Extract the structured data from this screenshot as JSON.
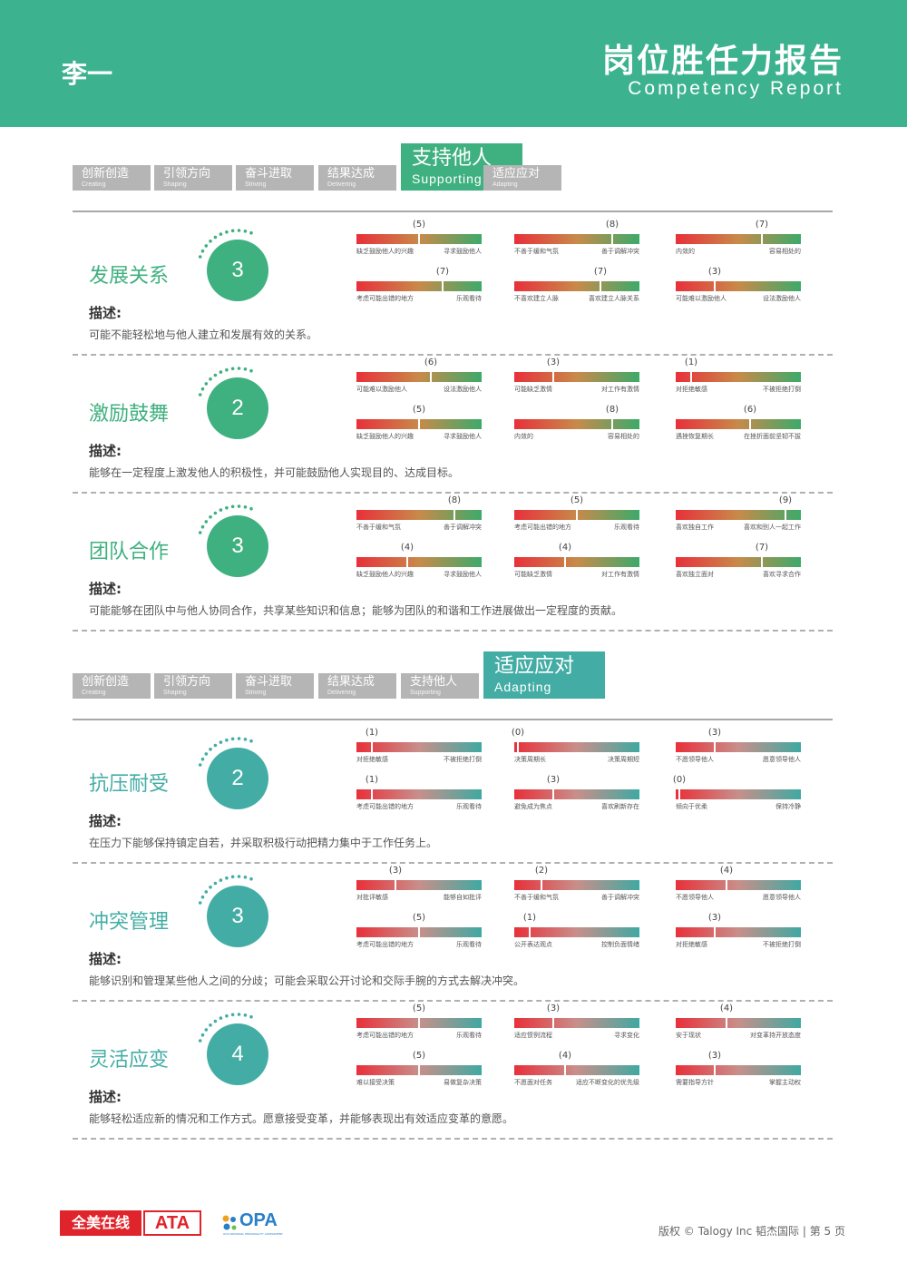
{
  "header": {
    "name": "李一",
    "title_cn": "岗位胜任力报告",
    "title_en": "Competency Report"
  },
  "colors": {
    "header_bg": "#3db28f",
    "supporting": "#3fb07f",
    "adapting": "#43ada5",
    "tab_gray": "#b5b5b5"
  },
  "sections": [
    {
      "accent": "#3fb07f",
      "gradient": "green",
      "tabs": [
        {
          "cn": "创新创造",
          "en": "Creating",
          "active": false
        },
        {
          "cn": "引领方向",
          "en": "Shaping",
          "active": false
        },
        {
          "cn": "奋斗进取",
          "en": "Striving",
          "active": false
        },
        {
          "cn": "结果达成",
          "en": "Delivering",
          "active": false
        },
        {
          "cn": "支持他人",
          "en": "Supporting",
          "active": true
        },
        {
          "cn": "适应应对",
          "en": "Adapting",
          "active": false
        }
      ],
      "competencies": [
        {
          "title": "发展关系",
          "score": "3",
          "desc_label": "描述:",
          "desc": "可能不能轻松地与他人建立和发展有效的关系。",
          "bars": [
            {
              "value": 5,
              "left": "缺乏鼓励他人的兴趣",
              "right": "寻求鼓励他人"
            },
            {
              "value": 8,
              "left": "不善于缓和气氛",
              "right": "善于调解冲突"
            },
            {
              "value": 7,
              "left": "内敛的",
              "right": "容易相处的"
            },
            {
              "value": 7,
              "left": "考虑可能出错的地方",
              "right": "乐观看待"
            },
            {
              "value": 7,
              "left": "不喜欢建立人脉",
              "right": "喜欢建立人脉关系"
            },
            {
              "value": 3,
              "left": "可能难以激励他人",
              "right": "设法激励他人"
            }
          ]
        },
        {
          "title": "激励鼓舞",
          "score": "2",
          "desc_label": "描述:",
          "desc": "能够在一定程度上激发他人的积极性，并可能鼓励他人实现目的、达成目标。",
          "bars": [
            {
              "value": 6,
              "left": "可能难以激励他人",
              "right": "设法激励他人"
            },
            {
              "value": 3,
              "left": "可能缺乏激情",
              "right": "对工作有激情"
            },
            {
              "value": 1,
              "left": "对拒绝敏感",
              "right": "不被拒绝打倒"
            },
            {
              "value": 5,
              "left": "缺乏鼓励他人的兴趣",
              "right": "寻求鼓励他人"
            },
            {
              "value": 8,
              "left": "内敛的",
              "right": "容易相处的"
            },
            {
              "value": 6,
              "left": "遇挫恢复期长",
              "right": "在挫折面前坚韧不拔"
            }
          ]
        },
        {
          "title": "团队合作",
          "score": "3",
          "desc_label": "描述:",
          "desc": "可能能够在团队中与他人协同合作，共享某些知识和信息；能够为团队的和谐和工作进展做出一定程度的贡献。",
          "bars": [
            {
              "value": 8,
              "left": "不善于缓和气氛",
              "right": "善于调解冲突"
            },
            {
              "value": 5,
              "left": "考虑可能出错的地方",
              "right": "乐观看待"
            },
            {
              "value": 9,
              "left": "喜欢独自工作",
              "right": "喜欢和别人一起工作"
            },
            {
              "value": 4,
              "left": "缺乏鼓励他人的兴趣",
              "right": "寻求鼓励他人"
            },
            {
              "value": 4,
              "left": "可能缺乏激情",
              "right": "对工作有激情"
            },
            {
              "value": 7,
              "left": "喜欢独立面对",
              "right": "喜欢寻求合作"
            }
          ]
        }
      ]
    },
    {
      "accent": "#43ada5",
      "gradient": "teal",
      "tabs": [
        {
          "cn": "创新创造",
          "en": "Creating",
          "active": false
        },
        {
          "cn": "引领方向",
          "en": "Shaping",
          "active": false
        },
        {
          "cn": "奋斗进取",
          "en": "Striving",
          "active": false
        },
        {
          "cn": "结果达成",
          "en": "Delivering",
          "active": false
        },
        {
          "cn": "支持他人",
          "en": "Supporting",
          "active": false
        },
        {
          "cn": "适应应对",
          "en": "Adapting",
          "active": true
        }
      ],
      "competencies": [
        {
          "title": "抗压耐受",
          "score": "2",
          "desc_label": "描述:",
          "desc": "在压力下能够保持镇定自若，并采取积极行动把精力集中于工作任务上。",
          "bars": [
            {
              "value": 1,
              "left": "对拒绝敏感",
              "right": "不被拒绝打倒"
            },
            {
              "value": 0,
              "left": "决策周期长",
              "right": "决策周期短"
            },
            {
              "value": 3,
              "left": "不愿领导他人",
              "right": "愿意领导他人"
            },
            {
              "value": 1,
              "left": "考虑可能出错的地方",
              "right": "乐观看待"
            },
            {
              "value": 3,
              "left": "避免成为焦点",
              "right": "喜欢刷新存在"
            },
            {
              "value": 0,
              "left": "倾向于优柔",
              "right": "保持冷静"
            }
          ]
        },
        {
          "title": "冲突管理",
          "score": "3",
          "desc_label": "描述:",
          "desc": "能够识别和管理某些他人之间的分歧；可能会采取公开讨论和交际手腕的方式去解决冲突。",
          "bars": [
            {
              "value": 3,
              "left": "对批评敏感",
              "right": "能够自如批评"
            },
            {
              "value": 2,
              "left": "不善于缓和气氛",
              "right": "善于调解冲突"
            },
            {
              "value": 4,
              "left": "不愿领导他人",
              "right": "愿意领导他人"
            },
            {
              "value": 5,
              "left": "考虑可能出错的地方",
              "right": "乐观看待"
            },
            {
              "value": 1,
              "left": "公开表达观点",
              "right": "控制负面情绪"
            },
            {
              "value": 3,
              "left": "对拒绝敏感",
              "right": "不被拒绝打倒"
            }
          ]
        },
        {
          "title": "灵活应变",
          "score": "4",
          "desc_label": "描述:",
          "desc": "能够轻松适应新的情况和工作方式。愿意接受变革，并能够表现出有效适应变革的意愿。",
          "bars": [
            {
              "value": 5,
              "left": "考虑可能出错的地方",
              "right": "乐观看待"
            },
            {
              "value": 3,
              "left": "适应惯例流程",
              "right": "寻求变化"
            },
            {
              "value": 4,
              "left": "安于现状",
              "right": "对变革持开放态度"
            },
            {
              "value": 5,
              "left": "难以接受决策",
              "right": "易做复杂决策"
            },
            {
              "value": 4,
              "left": "不愿面对任务",
              "right": "适应不断变化的优先级"
            },
            {
              "value": 3,
              "left": "需要指导方针",
              "right": "掌握主动权"
            }
          ]
        }
      ]
    }
  ],
  "footer": {
    "ata_cn": "全美在线",
    "ata_en": "ATA",
    "opa": "OPA",
    "opa_sub": "OCCUPATIONAL PERSONALITY ASSESSMENT",
    "copyright": "版权 © Talogy Inc  韬杰国际  |  第 5 页"
  }
}
